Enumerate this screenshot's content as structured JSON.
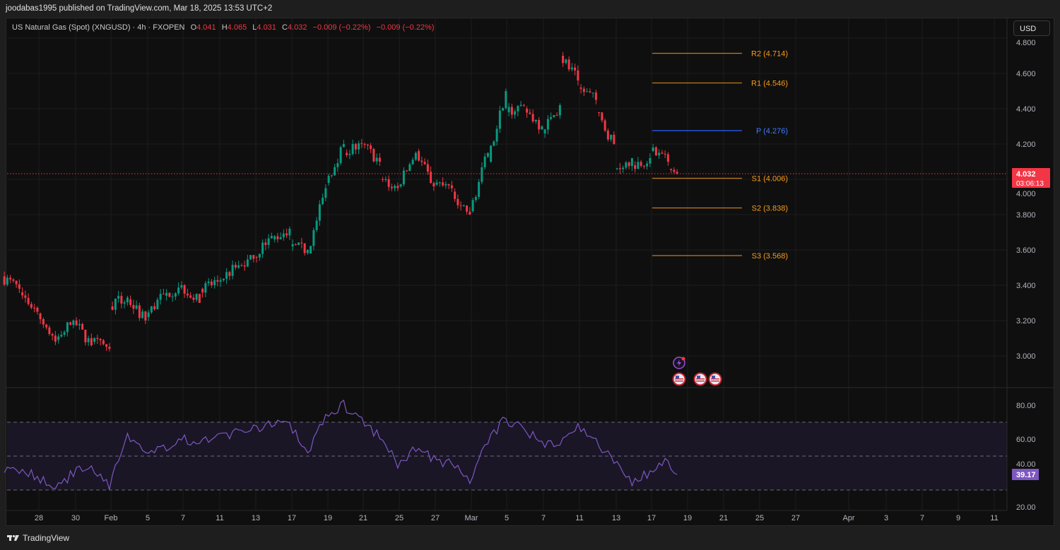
{
  "publisher": "joodabas1995 published on TradingView.com, Mar 18, 2025 13:53 UTC+2",
  "legend": {
    "symbol": "US Natural Gas (Spot) (XNGUSD) · 4h · FXOPEN",
    "o_label": "O",
    "o": "4.041",
    "h_label": "H",
    "h": "4.065",
    "l_label": "L",
    "l": "4.031",
    "c_label": "C",
    "c": "4.032",
    "change1": "−0.009 (−0.22%)",
    "change2": "−0.009 (−0.22%)"
  },
  "currency_button": "USD",
  "brand": "TradingView",
  "colors": {
    "up": "#089981",
    "down": "#f23645",
    "pivot": "#2962ff",
    "levels": "#c67a1c",
    "rsi": "#7e57c2"
  },
  "chart_data": [
    {
      "type": "candlestick",
      "timeframe": "4h",
      "y_ticks": [
        "3.000",
        "3.200",
        "3.400",
        "3.600",
        "3.800",
        "4.000",
        "4.200",
        "4.400",
        "4.600",
        "4.800"
      ],
      "x_ticks": [
        "28",
        "30",
        "Feb",
        "5",
        "7",
        "11",
        "13",
        "17",
        "19",
        "21",
        "25",
        "27",
        "Mar",
        "5",
        "7",
        "11",
        "13",
        "17",
        "19",
        "21",
        "25",
        "27",
        "Apr",
        "3",
        "7",
        "9",
        "11"
      ],
      "last_price": "4.032",
      "countdown": "03:06:13",
      "daily_approx": [
        {
          "date": "Jan 24",
          "o": 3.45,
          "c": 3.38
        },
        {
          "date": "Jan 27",
          "o": 3.36,
          "c": 3.25
        },
        {
          "date": "Jan 28",
          "o": 3.24,
          "c": 3.08
        },
        {
          "date": "Jan 29",
          "o": 3.09,
          "c": 3.2
        },
        {
          "date": "Jan 30",
          "o": 3.2,
          "c": 3.06
        },
        {
          "date": "Jan 31",
          "o": 3.08,
          "c": 3.04
        },
        {
          "date": "Feb 3",
          "o": 3.28,
          "c": 3.33
        },
        {
          "date": "Feb 4",
          "o": 3.32,
          "c": 3.2
        },
        {
          "date": "Feb 5",
          "o": 3.22,
          "c": 3.35
        },
        {
          "date": "Feb 6",
          "o": 3.34,
          "c": 3.4
        },
        {
          "date": "Feb 7",
          "o": 3.4,
          "c": 3.3
        },
        {
          "date": "Feb 10",
          "o": 3.38,
          "c": 3.42
        },
        {
          "date": "Feb 11",
          "o": 3.42,
          "c": 3.5
        },
        {
          "date": "Feb 12",
          "o": 3.5,
          "c": 3.55
        },
        {
          "date": "Feb 13",
          "o": 3.56,
          "c": 3.68
        },
        {
          "date": "Feb 14",
          "o": 3.66,
          "c": 3.72
        },
        {
          "date": "Feb 17",
          "o": 3.62,
          "c": 3.6
        },
        {
          "date": "Feb 18",
          "o": 3.58,
          "c": 3.95
        },
        {
          "date": "Feb 19",
          "o": 3.98,
          "c": 4.2
        },
        {
          "date": "Feb 20",
          "o": 4.15,
          "c": 4.2
        },
        {
          "date": "Feb 21",
          "o": 4.2,
          "c": 4.1
        },
        {
          "date": "Feb 24",
          "o": 4.0,
          "c": 3.95
        },
        {
          "date": "Feb 25",
          "o": 3.96,
          "c": 4.15
        },
        {
          "date": "Feb 26",
          "o": 4.16,
          "c": 3.96
        },
        {
          "date": "Feb 27",
          "o": 3.97,
          "c": 3.95
        },
        {
          "date": "Feb 28",
          "o": 3.93,
          "c": 3.8
        },
        {
          "date": "Mar 3",
          "o": 3.82,
          "c": 4.15
        },
        {
          "date": "Mar 4",
          "o": 4.1,
          "c": 4.5
        },
        {
          "date": "Mar 5",
          "o": 4.38,
          "c": 4.42
        },
        {
          "date": "Mar 6",
          "o": 4.4,
          "c": 4.3
        },
        {
          "date": "Mar 7",
          "o": 4.26,
          "c": 4.42
        },
        {
          "date": "Mar 10",
          "o": 4.7,
          "c": 4.56
        },
        {
          "date": "Mar 11",
          "o": 4.52,
          "c": 4.45
        },
        {
          "date": "Mar 12",
          "o": 4.38,
          "c": 4.2
        },
        {
          "date": "Mar 13",
          "o": 4.06,
          "c": 4.12
        },
        {
          "date": "Mar 14",
          "o": 4.08,
          "c": 4.12
        },
        {
          "date": "Mar 17",
          "o": 4.16,
          "c": 4.1
        },
        {
          "date": "Mar 18",
          "o": 4.06,
          "c": 4.032
        }
      ],
      "ylim": [
        2.85,
        4.8
      ],
      "pivots": [
        {
          "label": "R2 (4.714)",
          "value": 4.714
        },
        {
          "label": "R1 (4.546)",
          "value": 4.546
        },
        {
          "label": "P (4.276)",
          "value": 4.276
        },
        {
          "label": "S1 (4.006)",
          "value": 4.006
        },
        {
          "label": "S2 (3.838)",
          "value": 3.838
        },
        {
          "label": "S3 (3.568)",
          "value": 3.568
        }
      ]
    },
    {
      "type": "line",
      "indicator": "RSI",
      "y_ticks": [
        "20.00",
        "40.00",
        "60.00",
        "80.00"
      ],
      "bands": [
        30,
        50,
        70
      ],
      "last_value": "39.17",
      "daily_approx": [
        42,
        38,
        30,
        40,
        45,
        33,
        62,
        52,
        55,
        60,
        58,
        60,
        64,
        66,
        70,
        68,
        52,
        75,
        80,
        70,
        62,
        45,
        55,
        48,
        45,
        35,
        60,
        72,
        65,
        58,
        58,
        68,
        58,
        48,
        35,
        40,
        48,
        39.17
      ]
    }
  ],
  "events": {
    "icons": [
      "economic-event-icon",
      "us-flag-icon",
      "us-flag-icon",
      "us-flag-icon"
    ]
  }
}
